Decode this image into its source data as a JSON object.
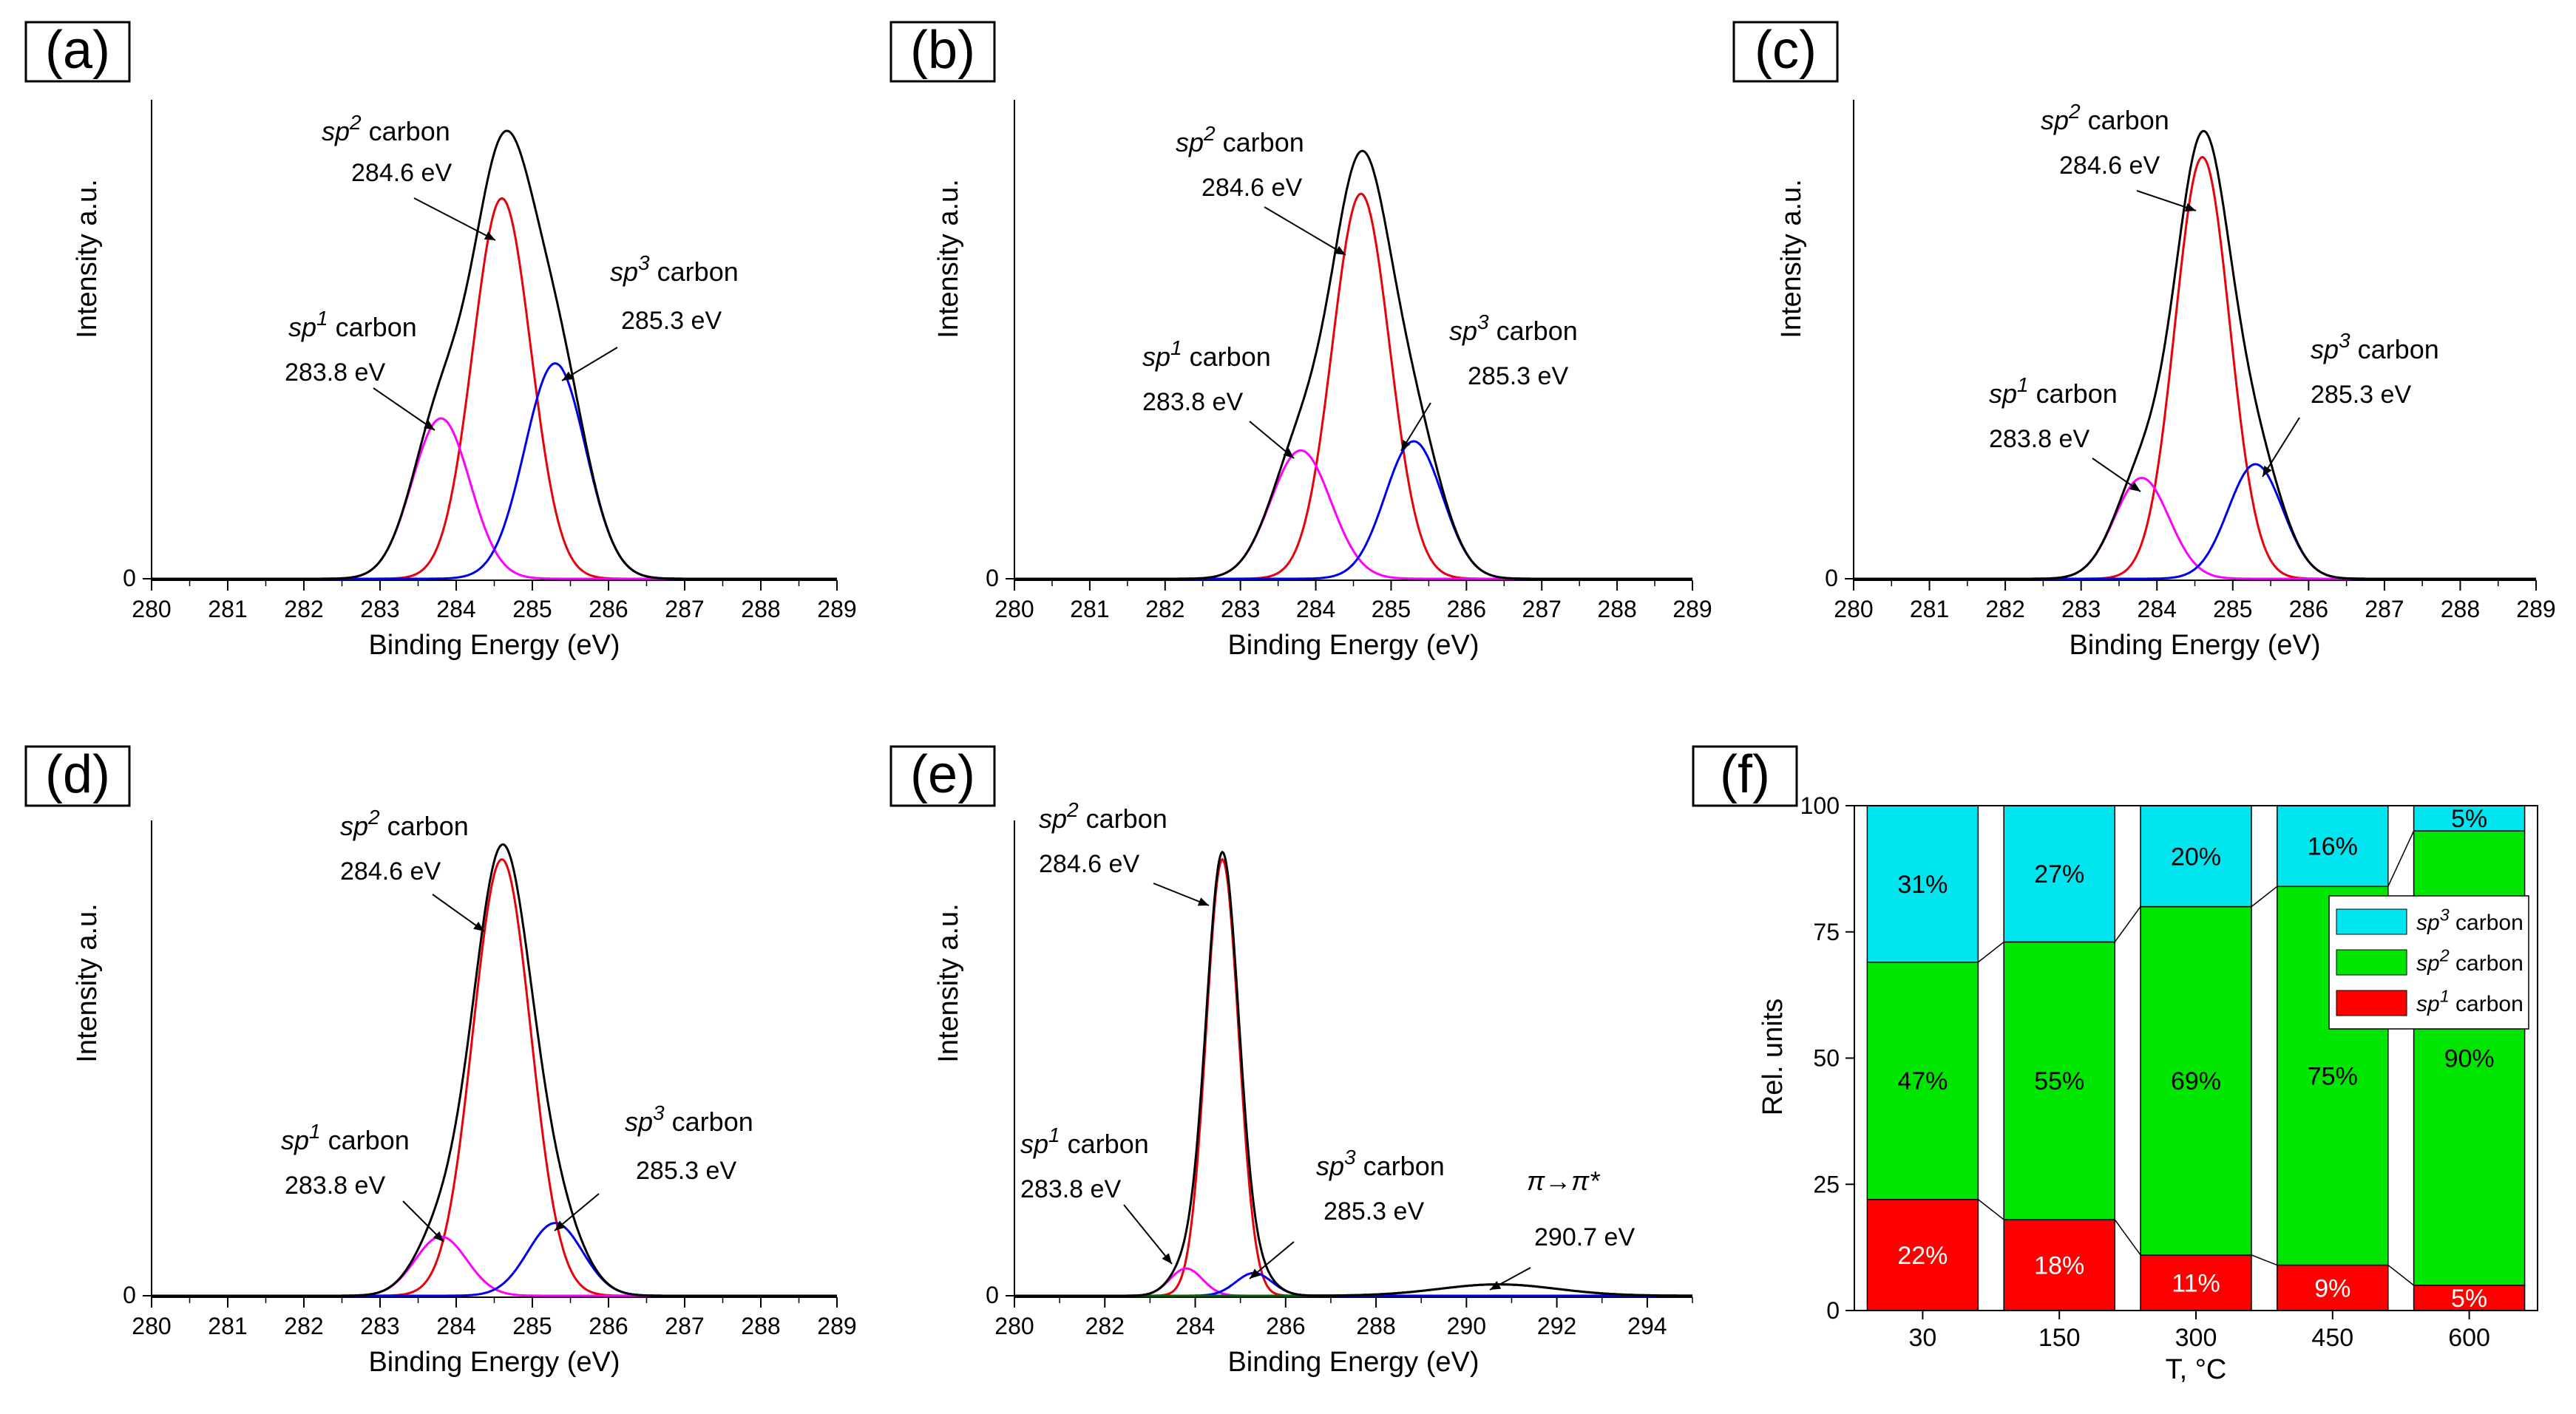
{
  "figure": {
    "description_panels": [
      "a",
      "b",
      "c",
      "d",
      "e",
      "f"
    ]
  },
  "chart_data": [
    {
      "id": "a",
      "type": "line",
      "panel_label": "(a)",
      "xlabel": "Binding Energy (eV)",
      "ylabel": "Intensity a.u.",
      "y_zero_label": "0",
      "xlim": [
        280,
        289
      ],
      "xticks": [
        "280",
        "281",
        "282",
        "283",
        "284",
        "285",
        "286",
        "287",
        "288",
        "289"
      ],
      "peak_height": 1.0,
      "series": [
        {
          "name": "envelope",
          "color": "#000000"
        },
        {
          "name": "sp2 carbon",
          "center": 284.6,
          "height": 0.83,
          "width": 0.38,
          "color": "#e8000b"
        },
        {
          "name": "sp1 carbon",
          "center": 283.8,
          "height": 0.35,
          "width": 0.38,
          "color": "#ff00ff"
        },
        {
          "name": "sp3 carbon",
          "center": 285.3,
          "height": 0.47,
          "width": 0.4,
          "color": "#0000ee"
        }
      ],
      "annotations": [
        {
          "id": "sp2",
          "prefix": "sp",
          "sup": "2",
          "suffix": " carbon",
          "energy": "284.6 eV"
        },
        {
          "id": "sp1",
          "prefix": "sp",
          "sup": "1",
          "suffix": " carbon",
          "energy": "283.8 eV"
        },
        {
          "id": "sp3",
          "prefix": "sp",
          "sup": "3",
          "suffix": " carbon",
          "energy": "285.3 eV"
        }
      ]
    },
    {
      "id": "b",
      "type": "line",
      "panel_label": "(b)",
      "xlabel": "Binding Energy (eV)",
      "ylabel": "Intensity a.u.",
      "y_zero_label": "0",
      "xlim": [
        280,
        289
      ],
      "xticks": [
        "280",
        "281",
        "282",
        "283",
        "284",
        "285",
        "286",
        "287",
        "288",
        "289"
      ],
      "series": [
        {
          "name": "envelope",
          "color": "#000000"
        },
        {
          "name": "sp2 carbon",
          "center": 284.6,
          "height": 0.84,
          "width": 0.38,
          "color": "#e8000b"
        },
        {
          "name": "sp1 carbon",
          "center": 283.8,
          "height": 0.28,
          "width": 0.4,
          "color": "#ff00ff"
        },
        {
          "name": "sp3 carbon",
          "center": 285.3,
          "height": 0.3,
          "width": 0.38,
          "color": "#0000ee"
        }
      ],
      "annotations": [
        {
          "id": "sp2",
          "prefix": "sp",
          "sup": "2",
          "suffix": " carbon",
          "energy": "284.6 eV"
        },
        {
          "id": "sp1",
          "prefix": "sp",
          "sup": "1",
          "suffix": " carbon",
          "energy": "283.8 eV"
        },
        {
          "id": "sp3",
          "prefix": "sp",
          "sup": "3",
          "suffix": " carbon",
          "energy": "285.3 eV"
        }
      ]
    },
    {
      "id": "c",
      "type": "line",
      "panel_label": "(c)",
      "xlabel": "Binding Energy (eV)",
      "ylabel": "Intensity a.u.",
      "y_zero_label": "0",
      "xlim": [
        280,
        289
      ],
      "xticks": [
        "280",
        "281",
        "282",
        "283",
        "284",
        "285",
        "286",
        "287",
        "288",
        "289"
      ],
      "series": [
        {
          "name": "envelope",
          "color": "#000000"
        },
        {
          "name": "sp2 carbon",
          "center": 284.6,
          "height": 0.92,
          "width": 0.36,
          "color": "#e8000b"
        },
        {
          "name": "sp1 carbon",
          "center": 283.8,
          "height": 0.22,
          "width": 0.36,
          "color": "#ff00ff"
        },
        {
          "name": "sp3 carbon",
          "center": 285.3,
          "height": 0.25,
          "width": 0.36,
          "color": "#0000ee"
        }
      ],
      "annotations": [
        {
          "id": "sp2",
          "prefix": "sp",
          "sup": "2",
          "suffix": " carbon",
          "energy": "284.6 eV"
        },
        {
          "id": "sp1",
          "prefix": "sp",
          "sup": "1",
          "suffix": " carbon",
          "energy": "283.8 eV"
        },
        {
          "id": "sp3",
          "prefix": "sp",
          "sup": "3",
          "suffix": " carbon",
          "energy": "285.3 eV"
        }
      ]
    },
    {
      "id": "d",
      "type": "line",
      "panel_label": "(d)",
      "xlabel": "Binding Energy (eV)",
      "ylabel": "Intensity a.u.",
      "y_zero_label": "0",
      "xlim": [
        280,
        289
      ],
      "xticks": [
        "280",
        "281",
        "282",
        "283",
        "284",
        "285",
        "286",
        "287",
        "288",
        "289"
      ],
      "series": [
        {
          "name": "envelope",
          "color": "#000000"
        },
        {
          "name": "sp2 carbon",
          "center": 284.6,
          "height": 0.96,
          "width": 0.38,
          "color": "#e8000b"
        },
        {
          "name": "sp1 carbon",
          "center": 283.8,
          "height": 0.13,
          "width": 0.34,
          "color": "#ff00ff"
        },
        {
          "name": "sp3 carbon",
          "center": 285.3,
          "height": 0.16,
          "width": 0.36,
          "color": "#0000ee"
        }
      ],
      "annotations": [
        {
          "id": "sp2",
          "prefix": "sp",
          "sup": "2",
          "suffix": " carbon",
          "energy": "284.6 eV"
        },
        {
          "id": "sp1",
          "prefix": "sp",
          "sup": "1",
          "suffix": " carbon",
          "energy": "283.8 eV"
        },
        {
          "id": "sp3",
          "prefix": "sp",
          "sup": "3",
          "suffix": " carbon",
          "energy": "285.3 eV"
        }
      ]
    },
    {
      "id": "e",
      "type": "line",
      "panel_label": "(e)",
      "xlabel": "Binding Energy (eV)",
      "ylabel": "Intensity a.u.",
      "y_zero_label": "0",
      "xlim": [
        280,
        295
      ],
      "xticks": [
        "280",
        "282",
        "284",
        "286",
        "288",
        "290",
        "292",
        "294"
      ],
      "series": [
        {
          "name": "envelope",
          "color": "#000000"
        },
        {
          "name": "sp2 carbon",
          "center": 284.6,
          "height": 0.96,
          "width": 0.36,
          "color": "#e8000b"
        },
        {
          "name": "sp1 carbon",
          "center": 283.8,
          "height": 0.06,
          "width": 0.36,
          "color": "#ff00ff"
        },
        {
          "name": "sp3 carbon",
          "center": 285.3,
          "height": 0.05,
          "width": 0.4,
          "color": "#0000ee"
        },
        {
          "name": "pi-pi* satellite",
          "center": 290.7,
          "height": 0.025,
          "width": 1.3,
          "color": "#006400"
        }
      ],
      "annotations": [
        {
          "id": "sp2",
          "prefix": "sp",
          "sup": "2",
          "suffix": " carbon",
          "energy": "284.6 eV"
        },
        {
          "id": "sp1",
          "prefix": "sp",
          "sup": "1",
          "suffix": " carbon",
          "energy": "283.8 eV"
        },
        {
          "id": "sp3",
          "prefix": "sp",
          "sup": "3",
          "suffix": " carbon",
          "energy": "285.3 eV"
        },
        {
          "id": "pi",
          "prefix": "π→π*",
          "sup": "",
          "suffix": "",
          "energy": "290.7 eV"
        }
      ]
    },
    {
      "id": "f",
      "type": "bar",
      "stacked": true,
      "panel_label": "(f)",
      "xlabel": "T, °C",
      "ylabel": "Rel. units",
      "ylim": [
        0,
        100
      ],
      "yticks": [
        "0",
        "25",
        "50",
        "75",
        "100"
      ],
      "categories": [
        "30",
        "150",
        "300",
        "450",
        "600"
      ],
      "series": [
        {
          "name": "sp1 carbon",
          "sup": "1",
          "color": "#ff0000",
          "values": [
            22,
            18,
            11,
            9,
            5
          ],
          "labels": [
            "22%",
            "18%",
            "11%",
            "9%",
            "5%"
          ]
        },
        {
          "name": "sp2 carbon",
          "sup": "2",
          "color": "#00e600",
          "values": [
            47,
            55,
            69,
            75,
            90
          ],
          "labels": [
            "47%",
            "55%",
            "69%",
            "75%",
            "90%"
          ]
        },
        {
          "name": "sp3 carbon",
          "sup": "3",
          "color": "#00e5ee",
          "values": [
            31,
            27,
            20,
            16,
            5
          ],
          "labels": [
            "31%",
            "27%",
            "20%",
            "16%",
            "5%"
          ]
        }
      ],
      "legend": {
        "position": "right",
        "entries": [
          {
            "prefix": "sp",
            "sup": "3",
            "suffix": " carbon",
            "color": "#00e5ee"
          },
          {
            "prefix": "sp",
            "sup": "2",
            "suffix": " carbon",
            "color": "#00e600"
          },
          {
            "prefix": "sp",
            "sup": "1",
            "suffix": " carbon",
            "color": "#ff0000"
          }
        ]
      }
    }
  ]
}
